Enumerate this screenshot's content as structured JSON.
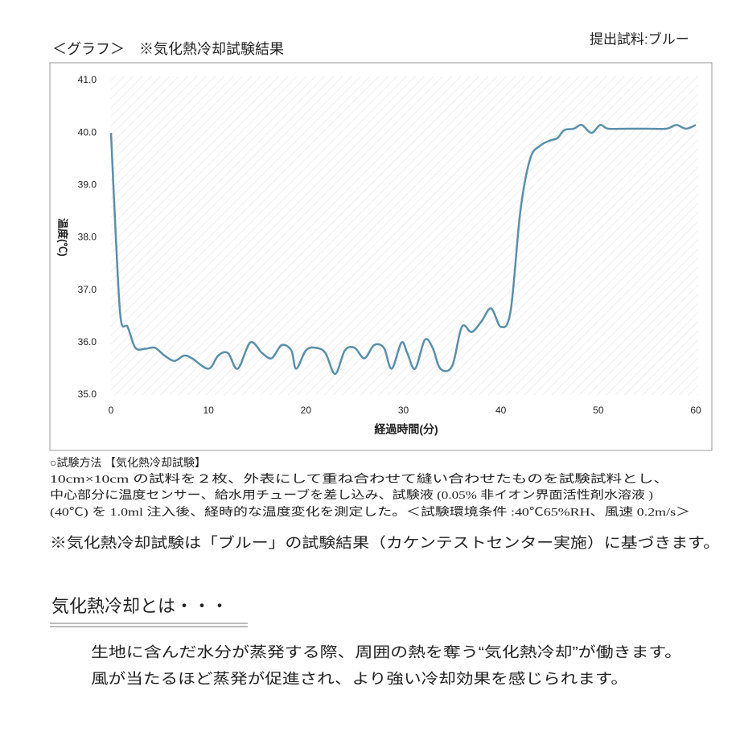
{
  "header": {
    "sample": "提出試料:ブルー",
    "title": "＜グラフ＞　※気化熱冷却試験結果"
  },
  "chart_data": {
    "type": "line",
    "y_label": "温度(℃)",
    "x_label": "経過時間(分)",
    "color": "#5a8fa9",
    "x": [
      0,
      0.5,
      1,
      1.7,
      2.5,
      3.5,
      4.5,
      5.5,
      6.5,
      7.5,
      8.3,
      10,
      11,
      12,
      13,
      14.3,
      15.5,
      16.5,
      17.5,
      18.5,
      19,
      20,
      21,
      22,
      23,
      24,
      25,
      26,
      27,
      28,
      28.8,
      29.8,
      30.4,
      31.2,
      32.2,
      33,
      33.8,
      35,
      36,
      37,
      38,
      39,
      40,
      41,
      42,
      43,
      44,
      45,
      45.8,
      46.5,
      47.5,
      48.3,
      49.3,
      50.2,
      51,
      53,
      55,
      57,
      58,
      59,
      60
    ],
    "values": [
      40.0,
      38.0,
      36.45,
      36.3,
      35.9,
      35.88,
      35.9,
      35.75,
      35.65,
      35.75,
      35.7,
      35.5,
      35.75,
      35.8,
      35.5,
      36.0,
      35.8,
      35.7,
      35.95,
      35.85,
      35.5,
      35.85,
      35.9,
      35.8,
      35.4,
      35.85,
      35.9,
      35.7,
      35.95,
      35.9,
      35.5,
      36.0,
      35.8,
      35.5,
      36.05,
      35.9,
      35.5,
      35.55,
      36.3,
      36.2,
      36.4,
      36.65,
      36.3,
      36.6,
      38.5,
      39.5,
      39.75,
      39.85,
      39.9,
      40.05,
      40.08,
      40.15,
      40.0,
      40.15,
      40.08,
      40.08,
      40.08,
      40.08,
      40.15,
      40.08,
      40.15
    ],
    "xlim": [
      0,
      60
    ],
    "xticks": [
      0,
      10,
      20,
      30,
      40,
      50,
      60
    ],
    "ylim": [
      35,
      41
    ],
    "yticks": [
      {
        "value": 35,
        "label": "35.0"
      },
      {
        "value": 36,
        "label": "36.0"
      },
      {
        "value": 37,
        "label": "37.0"
      },
      {
        "value": 38,
        "label": "38.0"
      },
      {
        "value": 39,
        "label": "39.0"
      },
      {
        "value": 40,
        "label": "40.0"
      },
      {
        "value": 41,
        "label": "41.0"
      }
    ]
  },
  "method": {
    "heading": "○試験方法 【気化熱冷却試験】",
    "lines": [
      "10cm×10cm の試料を２枚、外表にして重ね合わせて縫い合わせたものを試験試料とし、",
      "中心部分に温度センサー、給水用チューブを差し込み、試験液 (0.05% 非イオン界面活性剤水溶液 )",
      "(40℃) を 1.0ml 注入後、経時的な温度変化を測定した。＜試験環境条件 :40℃65%RH、風速 0.2m/s＞"
    ]
  },
  "note": "※気化熱冷却試験は「ブルー」の試験結果（カケンテストセンター実施）に基づきます。",
  "section": {
    "title": "気化熱冷却とは・・・",
    "lines": [
      "生地に含んだ水分が蒸発する際、周囲の熱を奪う“気化熱冷却”が働きます。",
      "風が当たるほど蒸発が促進され、より強い冷却効果を感じられます。"
    ]
  }
}
